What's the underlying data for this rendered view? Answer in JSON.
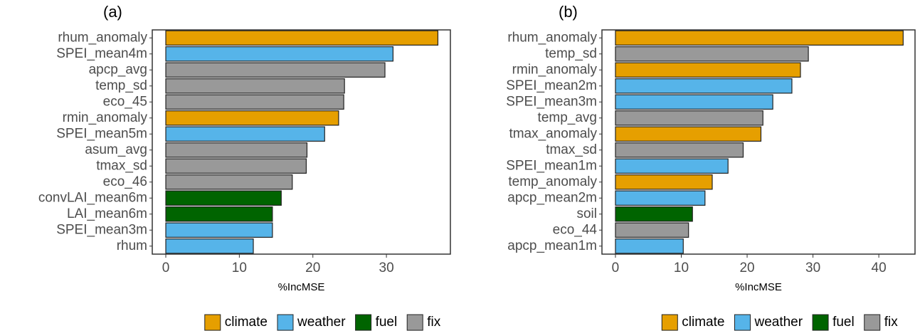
{
  "chart_data": [
    {
      "type": "bar",
      "orientation": "horizontal",
      "title": "(a)",
      "x_label": "%IncMSE",
      "categories": [
        "rhum_anomaly",
        "SPEI_mean4m",
        "apcp_avg",
        "temp_sd",
        "eco_45",
        "rmin_anomaly",
        "SPEI_mean5m",
        "asum_avg",
        "tmax_sd",
        "eco_46",
        "convLAI_mean6m",
        "LAI_mean6m",
        "SPEI_mean3m",
        "rhum"
      ],
      "values": [
        37.0,
        30.9,
        29.8,
        24.3,
        24.2,
        23.5,
        21.6,
        19.2,
        19.1,
        17.2,
        15.7,
        14.5,
        14.5,
        11.9
      ],
      "groups": [
        0,
        1,
        3,
        3,
        3,
        0,
        1,
        3,
        3,
        3,
        2,
        2,
        1,
        1
      ],
      "legend": [
        {
          "name": "climate",
          "color": "#E69F00"
        },
        {
          "name": "weather",
          "color": "#56B4E9"
        },
        {
          "name": "fuel",
          "color": "#006400"
        },
        {
          "name": "fix",
          "color": "#999999"
        }
      ],
      "xlim": [
        -1.84,
        38.7
      ],
      "xticks": [
        0,
        10,
        20,
        30
      ],
      "grid": false
    },
    {
      "type": "bar",
      "orientation": "horizontal",
      "title": "(b)",
      "x_label": "%IncMSE",
      "categories": [
        "rhum_anomaly",
        "temp_sd",
        "rmin_anomaly",
        "SPEI_mean2m",
        "SPEI_mean3m",
        "temp_avg",
        "tmax_anomaly",
        "tmax_sd",
        "SPEI_mean1m",
        "temp_anomaly",
        "apcp_mean2m",
        "soil",
        "eco_44",
        "apcp_mean1m"
      ],
      "values": [
        43.7,
        29.3,
        28.1,
        26.8,
        23.9,
        22.4,
        22.1,
        19.4,
        17.1,
        14.7,
        13.6,
        11.7,
        11.1,
        10.3
      ],
      "groups": [
        0,
        3,
        0,
        1,
        1,
        3,
        0,
        3,
        1,
        0,
        1,
        2,
        3,
        1
      ],
      "legend": [
        {
          "name": "climate",
          "color": "#E69F00"
        },
        {
          "name": "weather",
          "color": "#56B4E9"
        },
        {
          "name": "fuel",
          "color": "#006400"
        },
        {
          "name": "fix",
          "color": "#999999"
        }
      ],
      "xlim": [
        -2.05,
        45.5
      ],
      "xticks": [
        0,
        10,
        20,
        30,
        40
      ],
      "grid": false
    }
  ]
}
